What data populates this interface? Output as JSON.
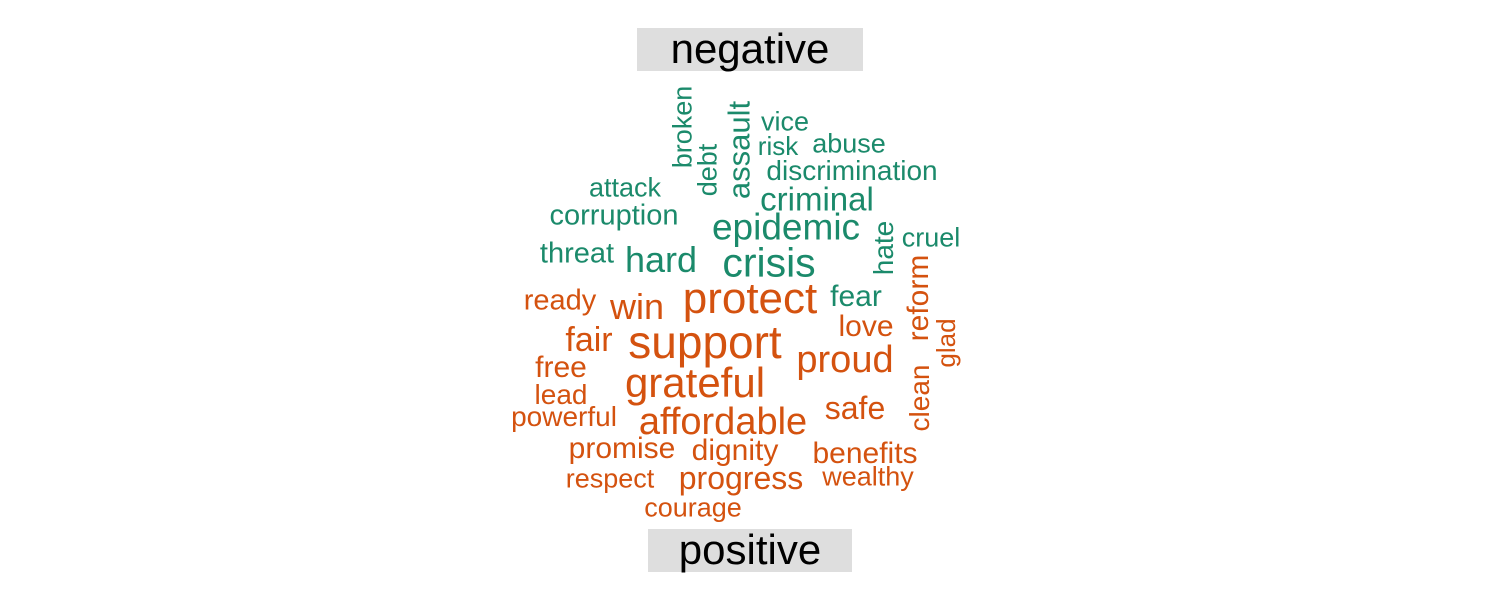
{
  "chart_data": {
    "type": "wordcloud",
    "groups": [
      {
        "label": "negative",
        "color": "#1b8a6b",
        "words": [
          "broken",
          "debt",
          "assault",
          "vice",
          "risk",
          "abuse",
          "discrimination",
          "attack",
          "criminal",
          "corruption",
          "epidemic",
          "hate",
          "cruel",
          "threat",
          "hard",
          "crisis",
          "fear"
        ]
      },
      {
        "label": "positive",
        "color": "#d4520f",
        "words": [
          "ready",
          "win",
          "protect",
          "reform",
          "love",
          "glad",
          "fair",
          "support",
          "proud",
          "free",
          "grateful",
          "clean",
          "lead",
          "powerful",
          "safe",
          "affordable",
          "promise",
          "dignity",
          "benefits",
          "respect",
          "progress",
          "wealthy",
          "courage"
        ]
      }
    ]
  }
}
